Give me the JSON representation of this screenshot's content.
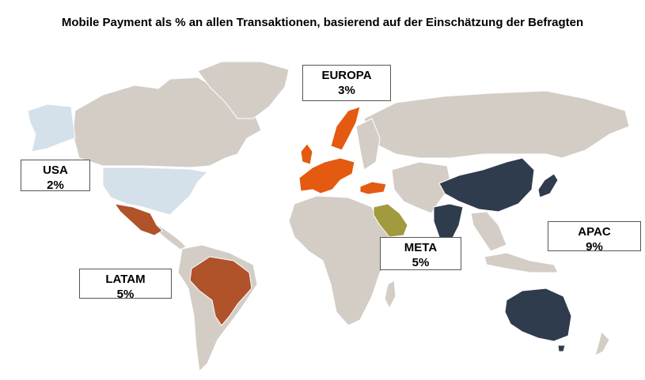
{
  "title": "Mobile Payment als % an allen Transaktionen, basierend auf der Einschätzung der Befragten",
  "colors": {
    "background_land": "#d3cdc6",
    "border": "#ffffff",
    "europa": "#e35a10",
    "usa": "#d4e0ea",
    "latam": "#b0522a",
    "meta": "#a29a3e",
    "apac": "#2f3c4d"
  },
  "regions": [
    {
      "key": "europa",
      "name": "EUROPA",
      "value": "3%"
    },
    {
      "key": "usa",
      "name": "USA",
      "value": "2%"
    },
    {
      "key": "latam",
      "name": "LATAM",
      "value": "5%"
    },
    {
      "key": "meta",
      "name": "META",
      "value": "5%"
    },
    {
      "key": "apac",
      "name": "APAC",
      "value": "9%"
    }
  ]
}
